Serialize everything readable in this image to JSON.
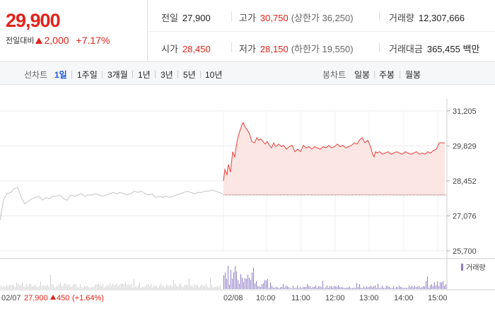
{
  "quote": {
    "price": "29,900",
    "change_label": "전일대비",
    "change_value": "2,000",
    "change_percent": "+7.17%",
    "stats": [
      {
        "label": "전일",
        "value": "27,900",
        "tone": "plain"
      },
      {
        "label": "고가",
        "value": "30,750",
        "tone": "red",
        "sub": "(상한가 36,250)"
      },
      {
        "label": "거래량",
        "value": "12,307,666",
        "tone": "plain"
      },
      {
        "label": "시가",
        "value": "28,450",
        "tone": "red"
      },
      {
        "label": "저가",
        "value": "28,150",
        "tone": "red",
        "sub": "(하한가 19,550)"
      },
      {
        "label": "거래대금",
        "value": "365,455 백만",
        "tone": "plain"
      }
    ]
  },
  "periods": {
    "line_label": "선차트",
    "line_items": [
      "1일",
      "1주일",
      "3개월",
      "1년",
      "3년",
      "5년",
      "10년"
    ],
    "active": "1일",
    "candle_label": "봉차트",
    "candle_items": [
      "일봉",
      "주봉",
      "월봉"
    ]
  },
  "chart_data": {
    "type": "line",
    "y_ticks": [
      "31,205",
      "29,829",
      "28,452",
      "27,076",
      "25,700"
    ],
    "ylim": [
      25700,
      31205
    ],
    "baseline": 27900,
    "prev_day_label": "02/07",
    "prev_day_close": "27,900",
    "prev_day_change": "450",
    "prev_day_change_pct": "(+1.64%)",
    "x_ticks": [
      "02/08",
      "10:00",
      "11:00",
      "12:00",
      "13:00",
      "14:00",
      "15:00"
    ],
    "volume_legend": "거래량",
    "colors": {
      "today": "#e8413a",
      "prev": "#c4c4c4",
      "fill": "#fbe6e4",
      "volume_today": "#8e7cc3",
      "volume_prev": "#d0d0d0"
    },
    "series": [
      {
        "x": [
          0,
          5,
          10,
          15,
          20,
          25,
          30,
          35,
          40,
          45,
          50,
          55,
          60,
          65,
          70,
          75,
          80,
          85,
          90,
          95,
          100,
          105,
          110,
          115,
          120,
          125,
          130,
          135,
          140,
          145,
          150,
          155,
          160,
          165,
          170,
          175,
          180,
          185,
          190,
          195,
          200,
          205,
          210,
          215,
          220,
          225,
          230,
          235,
          240,
          245,
          250,
          255,
          260,
          265,
          270,
          275,
          280,
          285,
          290,
          295,
          300,
          305,
          310,
          315
        ],
        "values": [
          26900,
          27700,
          27950,
          28000,
          28150,
          28200,
          27800,
          27550,
          27650,
          27750,
          27800,
          27850,
          27700,
          27800,
          27750,
          27850,
          27850,
          27900,
          27750,
          27700,
          27900,
          27850,
          27900,
          27950,
          27850,
          27900,
          27900,
          27950,
          27900,
          27850,
          27900,
          27950,
          28000,
          27950,
          28000,
          27950,
          27900,
          27950,
          28050,
          28000,
          28050,
          27950,
          27900,
          27950,
          27800,
          27850,
          27800,
          27850,
          27800,
          27850,
          27900,
          27950,
          28000,
          28050,
          28000,
          27950,
          28000,
          28000,
          28050,
          28050,
          28100,
          28050,
          28000,
          27950
        ]
      },
      {
        "x": [
          316,
          318,
          321,
          323,
          326,
          329,
          332,
          334,
          336,
          339,
          342,
          344,
          347,
          350,
          353,
          356,
          360,
          363,
          366,
          369,
          372,
          375,
          378,
          381,
          384,
          387,
          390,
          394,
          398,
          401,
          405,
          409,
          413,
          417,
          421,
          425,
          429,
          433,
          437,
          441,
          445,
          449,
          453,
          457,
          461,
          465,
          469,
          473,
          477,
          481,
          485,
          489,
          493,
          497,
          501,
          505,
          508,
          512,
          516,
          520,
          524,
          527,
          529,
          531,
          533,
          537,
          541,
          545,
          549,
          553,
          557,
          561,
          565,
          569,
          573,
          577,
          581,
          585,
          589,
          593,
          597,
          601,
          605,
          609,
          613,
          617,
          621,
          625,
          629
        ],
        "values": [
          28450,
          28900,
          28700,
          29100,
          28800,
          29600,
          29400,
          29800,
          30100,
          30400,
          30650,
          30750,
          30550,
          30450,
          30300,
          30000,
          29950,
          30150,
          30050,
          30100,
          30000,
          29900,
          30000,
          29850,
          29750,
          29950,
          29800,
          29900,
          29800,
          29850,
          29700,
          29800,
          29850,
          29600,
          29700,
          29600,
          29850,
          29750,
          29800,
          29700,
          29800,
          29750,
          29700,
          29800,
          29750,
          29850,
          29750,
          29800,
          29900,
          29800,
          29850,
          29750,
          29800,
          29850,
          29950,
          29900,
          30050,
          30150,
          29950,
          30050,
          29800,
          29500,
          29400,
          29600,
          29550,
          29600,
          29500,
          29550,
          29600,
          29500,
          29550,
          29600,
          29550,
          29500,
          29600,
          29550,
          29500,
          29550,
          29600,
          29500,
          29550,
          29500,
          29600,
          29550,
          29650,
          29700,
          29950,
          29950,
          29950
        ]
      }
    ]
  }
}
